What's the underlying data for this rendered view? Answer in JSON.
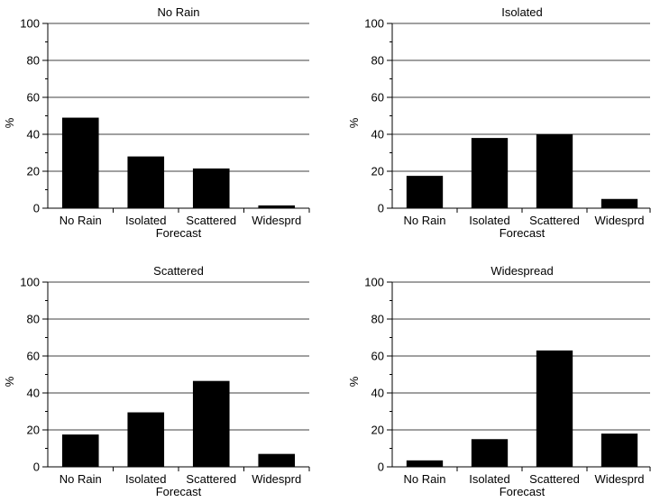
{
  "chart_data": [
    {
      "type": "bar",
      "title": "No Rain",
      "categories": [
        "No Rain",
        "Isolated",
        "Scattered",
        "Widesprd"
      ],
      "values": [
        49,
        28,
        21.5,
        1.5
      ],
      "xlabel": "Forecast",
      "ylabel": "%",
      "ylim": [
        0,
        100
      ],
      "yticks": [
        "0",
        "20",
        "40",
        "60",
        "80",
        "100"
      ],
      "grid": true
    },
    {
      "type": "bar",
      "title": "Isolated",
      "categories": [
        "No Rain",
        "Isolated",
        "Scattered",
        "Widesprd"
      ],
      "values": [
        17.5,
        38,
        40,
        5
      ],
      "xlabel": "Forecast",
      "ylabel": "%",
      "ylim": [
        0,
        100
      ],
      "yticks": [
        "0",
        "20",
        "40",
        "60",
        "80",
        "100"
      ],
      "grid": true
    },
    {
      "type": "bar",
      "title": "Scattered",
      "categories": [
        "No Rain",
        "Isolated",
        "Scattered",
        "Widesprd"
      ],
      "values": [
        17.5,
        29.5,
        46.5,
        7
      ],
      "xlabel": "Forecast",
      "ylabel": "%",
      "ylim": [
        0,
        100
      ],
      "yticks": [
        "0",
        "20",
        "40",
        "60",
        "80",
        "100"
      ],
      "grid": true
    },
    {
      "type": "bar",
      "title": "Widespread",
      "categories": [
        "No Rain",
        "Isolated",
        "Scattered",
        "Widesprd"
      ],
      "values": [
        3.5,
        15,
        63,
        18
      ],
      "xlabel": "Forecast",
      "ylabel": "%",
      "ylim": [
        0,
        100
      ],
      "yticks": [
        "0",
        "20",
        "40",
        "60",
        "80",
        "100"
      ],
      "grid": true
    }
  ]
}
